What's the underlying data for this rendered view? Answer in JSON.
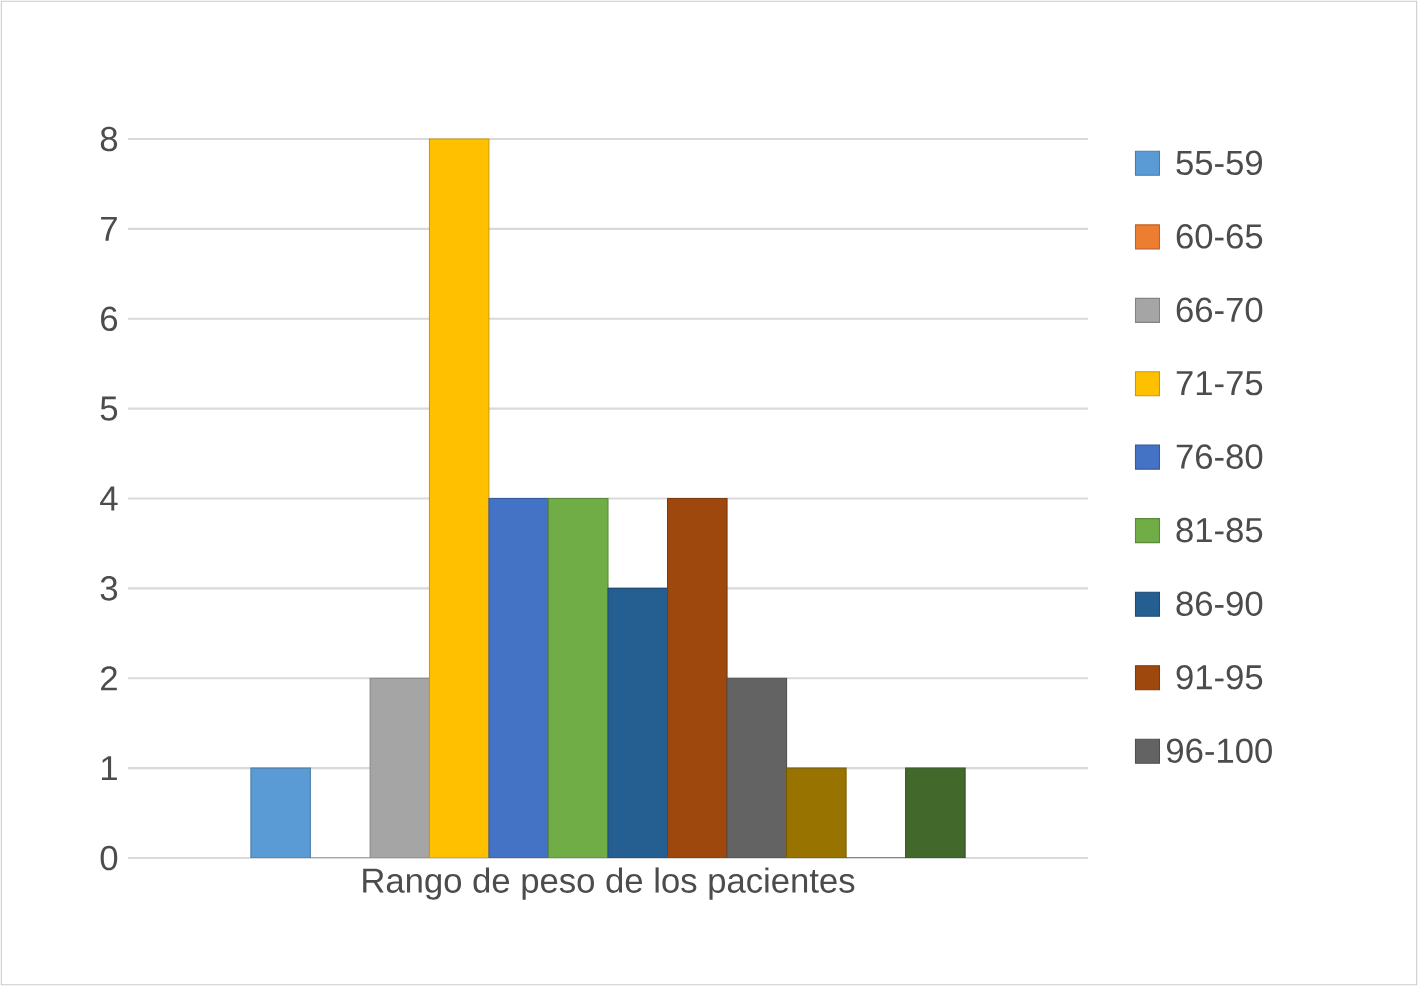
{
  "chart_data": {
    "type": "bar",
    "categories": [
      "Rango de peso de los pacientes"
    ],
    "series": [
      {
        "name": "55-59",
        "color": "#5b9bd5",
        "values": [
          1
        ]
      },
      {
        "name": "60-65",
        "color": "#ed7d31",
        "values": [
          0
        ]
      },
      {
        "name": "66-70",
        "color": "#a5a5a5",
        "values": [
          2
        ]
      },
      {
        "name": "71-75",
        "color": "#ffc000",
        "values": [
          8
        ]
      },
      {
        "name": "76-80",
        "color": "#4472c4",
        "values": [
          4
        ]
      },
      {
        "name": "81-85",
        "color": "#70ad47",
        "values": [
          4
        ]
      },
      {
        "name": "86-90",
        "color": "#255e91",
        "values": [
          3
        ]
      },
      {
        "name": "91-95",
        "color": "#9e480e",
        "values": [
          4
        ]
      },
      {
        "name": "96-100",
        "color": "#636363",
        "values": [
          2
        ]
      },
      {
        "color": "#997300",
        "values": [
          1
        ]
      },
      {
        "color": "#264478",
        "values": [
          0
        ]
      },
      {
        "color": "#43682b",
        "values": [
          1
        ]
      }
    ],
    "ylim": [
      0,
      8
    ],
    "yticks": [
      0,
      1,
      2,
      3,
      4,
      5,
      6,
      7,
      8
    ],
    "grid": "y",
    "legend": "right"
  }
}
